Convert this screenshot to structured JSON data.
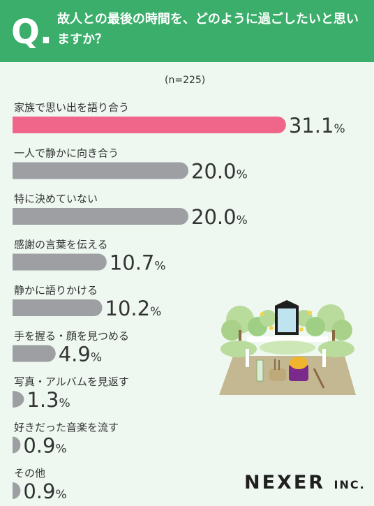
{
  "header": {
    "q_mark": "Q.",
    "question": "故人との最後の時間を、どのように過ごしたいと思いますか？"
  },
  "sample": "(n=225)",
  "brand": {
    "name": "NEXER",
    "suffix": "INC."
  },
  "colors": {
    "header_bg": "#3aae6a",
    "highlight": "#f0668a",
    "bar": "#9e9fa3",
    "background": "#eef8f1"
  },
  "chart_data": {
    "type": "bar",
    "orientation": "horizontal",
    "categories": [
      "家族で思い出を語り合う",
      "一人で静かに向き合う",
      "特に決めていない",
      "感謝の言葉を伝える",
      "静かに語りかける",
      "手を握る・顔を見つめる",
      "写真・アルバムを見返す",
      "好きだった音楽を流す",
      "その他"
    ],
    "values": [
      31.1,
      20.0,
      20.0,
      10.7,
      10.2,
      4.9,
      1.3,
      0.9,
      0.9
    ],
    "value_labels": [
      "31.1",
      "20.0",
      "20.0",
      "10.7",
      "10.2",
      "4.9",
      "1.3",
      "0.9",
      "0.9"
    ],
    "unit": "%",
    "highlight_index": 0
  }
}
